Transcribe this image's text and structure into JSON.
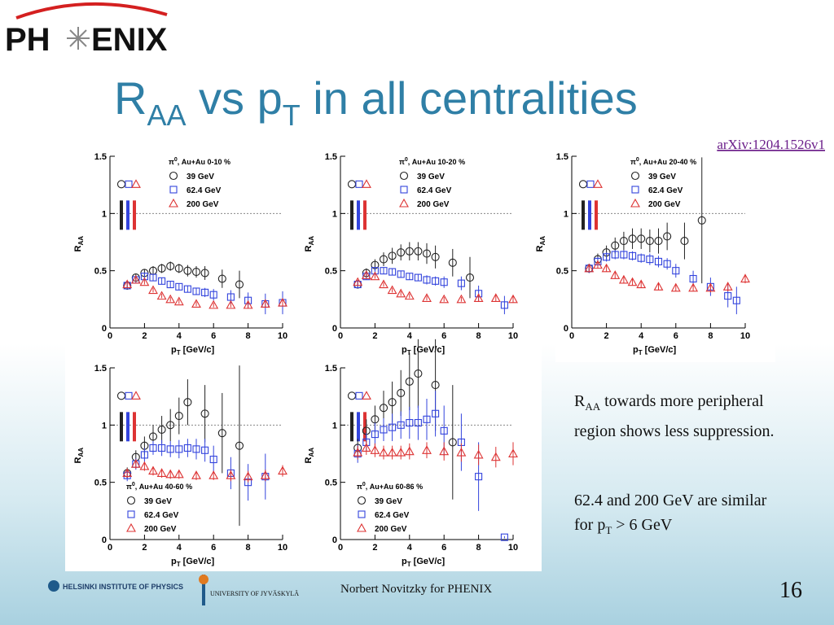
{
  "header": {
    "logo_left": "PH",
    "logo_right": "ENIX",
    "title": {
      "main": "R",
      "sub": "AA",
      "mid": " vs p",
      "sub2": "T",
      "rest": " in all centralities"
    },
    "reference": "arXiv:1204.1526v1"
  },
  "notes": [
    {
      "main": "R",
      "sub": "AA",
      "rest": " towards more peripheral region shows less suppression."
    },
    {
      "main": "62.4 and 200 GeV are similar for p",
      "sub": "T",
      "rest": " > 6 GeV"
    }
  ],
  "footer": {
    "institute": "HELSINKI INSTITUTE OF PHYSICS",
    "university": "UNIVERSITY OF JYVÄSKYLÄ",
    "author": "Norbert Novitzky for PHENIX",
    "page": "16"
  },
  "chart_data": [
    {
      "type": "scatter",
      "title": {
        "main": "π",
        "sup": "0",
        "rest": ", Au+Au 0-10 %"
      },
      "xlabel": {
        "main": "p",
        "sub": "T",
        "rest": " [GeV/c]"
      },
      "ylabel": {
        "main": "R",
        "sub": "AA"
      },
      "xlim": [
        0,
        10
      ],
      "ylim": [
        0,
        1.5
      ],
      "xticks": [
        0,
        2,
        4,
        6,
        8,
        10
      ],
      "yticks": [
        0,
        0.5,
        1,
        1.5
      ],
      "reference_line": 1,
      "legend": "top-left",
      "series": [
        {
          "name": "39 GeV",
          "color": "#222222",
          "marker": "circle",
          "x": [
            1,
            1.5,
            2,
            2.5,
            3,
            3.5,
            4,
            4.5,
            5,
            5.5,
            6.5,
            7.5
          ],
          "values": [
            0.37,
            0.44,
            0.48,
            0.5,
            0.52,
            0.54,
            0.52,
            0.5,
            0.49,
            0.48,
            0.43,
            0.38
          ],
          "errors": [
            0.03,
            0.03,
            0.03,
            0.04,
            0.04,
            0.04,
            0.04,
            0.05,
            0.05,
            0.06,
            0.08,
            0.12
          ]
        },
        {
          "name": "62.4 GeV",
          "color": "#3344dd",
          "marker": "square",
          "x": [
            1,
            1.5,
            2,
            2.5,
            3,
            3.5,
            4,
            4.5,
            5,
            5.5,
            6,
            7,
            8,
            9,
            10
          ],
          "values": [
            0.37,
            0.42,
            0.45,
            0.44,
            0.41,
            0.38,
            0.36,
            0.34,
            0.32,
            0.31,
            0.29,
            0.27,
            0.24,
            0.21,
            0.22
          ],
          "errors": [
            0.03,
            0.03,
            0.03,
            0.03,
            0.03,
            0.03,
            0.03,
            0.03,
            0.03,
            0.04,
            0.05,
            0.06,
            0.07,
            0.09,
            0.1
          ]
        },
        {
          "name": "200 GeV",
          "color": "#dd3333",
          "marker": "triangle",
          "x": [
            1,
            1.5,
            2,
            2.5,
            3,
            3.5,
            4,
            5,
            6,
            7,
            8,
            9,
            10
          ],
          "values": [
            0.38,
            0.42,
            0.4,
            0.33,
            0.28,
            0.25,
            0.23,
            0.21,
            0.2,
            0.2,
            0.2,
            0.21,
            0.22
          ],
          "errors": [
            0.02,
            0.02,
            0.02,
            0.02,
            0.02,
            0.02,
            0.02,
            0.02,
            0.02,
            0.02,
            0.03,
            0.03,
            0.03
          ]
        }
      ]
    },
    {
      "type": "scatter",
      "title": {
        "main": "π",
        "sup": "0",
        "rest": ", Au+Au 10-20 %"
      },
      "xlabel": {
        "main": "p",
        "sub": "T",
        "rest": " [GeV/c]"
      },
      "ylabel": {
        "main": "R",
        "sub": "AA"
      },
      "xlim": [
        0,
        10
      ],
      "ylim": [
        0,
        1.5
      ],
      "xticks": [
        0,
        2,
        4,
        6,
        8,
        10
      ],
      "yticks": [
        0,
        0.5,
        1,
        1.5
      ],
      "reference_line": 1,
      "legend": "top-left",
      "series": [
        {
          "name": "39 GeV",
          "color": "#222222",
          "marker": "circle",
          "x": [
            1,
            1.5,
            2,
            2.5,
            3,
            3.5,
            4,
            4.5,
            5,
            5.5,
            6.5,
            7.5
          ],
          "values": [
            0.38,
            0.48,
            0.55,
            0.6,
            0.63,
            0.66,
            0.67,
            0.67,
            0.65,
            0.62,
            0.57,
            0.44
          ],
          "errors": [
            0.03,
            0.04,
            0.05,
            0.06,
            0.07,
            0.07,
            0.08,
            0.08,
            0.09,
            0.1,
            0.12,
            0.18
          ]
        },
        {
          "name": "62.4 GeV",
          "color": "#3344dd",
          "marker": "square",
          "x": [
            1,
            1.5,
            2,
            2.5,
            3,
            3.5,
            4,
            4.5,
            5,
            5.5,
            6,
            7,
            8,
            9.5
          ],
          "values": [
            0.38,
            0.45,
            0.5,
            0.5,
            0.49,
            0.47,
            0.45,
            0.44,
            0.42,
            0.41,
            0.4,
            0.39,
            0.3,
            0.2
          ],
          "errors": [
            0.03,
            0.03,
            0.03,
            0.03,
            0.03,
            0.03,
            0.03,
            0.03,
            0.04,
            0.04,
            0.05,
            0.06,
            0.07,
            0.08
          ]
        },
        {
          "name": "200 GeV",
          "color": "#dd3333",
          "marker": "triangle",
          "x": [
            1,
            1.5,
            2,
            2.5,
            3,
            3.5,
            4,
            5,
            6,
            7,
            8,
            9,
            10
          ],
          "values": [
            0.4,
            0.46,
            0.45,
            0.38,
            0.33,
            0.3,
            0.28,
            0.26,
            0.25,
            0.25,
            0.26,
            0.26,
            0.25
          ],
          "errors": [
            0.02,
            0.02,
            0.02,
            0.02,
            0.02,
            0.02,
            0.02,
            0.02,
            0.02,
            0.02,
            0.03,
            0.03,
            0.03
          ]
        }
      ]
    },
    {
      "type": "scatter",
      "title": {
        "main": "π",
        "sup": "0",
        "rest": ", Au+Au 20-40 %"
      },
      "xlabel": {
        "main": "p",
        "sub": "T",
        "rest": " [GeV/c]"
      },
      "ylabel": {
        "main": "R",
        "sub": "AA"
      },
      "xlim": [
        0,
        10
      ],
      "ylim": [
        0,
        1.5
      ],
      "xticks": [
        0,
        2,
        4,
        6,
        8,
        10
      ],
      "yticks": [
        0,
        0.5,
        1,
        1.5
      ],
      "reference_line": 1,
      "legend": "top-left",
      "series": [
        {
          "name": "39 GeV",
          "color": "#222222",
          "marker": "circle",
          "x": [
            1,
            1.5,
            2,
            2.5,
            3,
            3.5,
            4,
            4.5,
            5,
            5.5,
            6.5,
            7.5
          ],
          "values": [
            0.52,
            0.6,
            0.66,
            0.72,
            0.76,
            0.78,
            0.78,
            0.76,
            0.76,
            0.8,
            0.76,
            0.94
          ],
          "errors": [
            0.04,
            0.05,
            0.06,
            0.07,
            0.08,
            0.09,
            0.09,
            0.1,
            0.11,
            0.12,
            0.16,
            0.55
          ]
        },
        {
          "name": "62.4 GeV",
          "color": "#3344dd",
          "marker": "square",
          "x": [
            1,
            1.5,
            2,
            2.5,
            3,
            3.5,
            4,
            4.5,
            5,
            5.5,
            6,
            7,
            8,
            9,
            9.5
          ],
          "values": [
            0.52,
            0.58,
            0.62,
            0.64,
            0.64,
            0.63,
            0.61,
            0.6,
            0.58,
            0.56,
            0.5,
            0.43,
            0.36,
            0.28,
            0.24
          ],
          "errors": [
            0.04,
            0.04,
            0.04,
            0.04,
            0.04,
            0.04,
            0.04,
            0.05,
            0.05,
            0.05,
            0.06,
            0.07,
            0.08,
            0.1,
            0.12
          ]
        },
        {
          "name": "200 GeV",
          "color": "#dd3333",
          "marker": "triangle",
          "x": [
            1,
            1.5,
            2,
            2.5,
            3,
            3.5,
            4,
            5,
            6,
            7,
            8,
            9,
            10
          ],
          "values": [
            0.52,
            0.55,
            0.52,
            0.46,
            0.42,
            0.4,
            0.38,
            0.36,
            0.35,
            0.35,
            0.35,
            0.36,
            0.43
          ],
          "errors": [
            0.03,
            0.03,
            0.03,
            0.03,
            0.03,
            0.03,
            0.03,
            0.03,
            0.03,
            0.03,
            0.04,
            0.04,
            0.04
          ]
        }
      ]
    },
    {
      "type": "scatter",
      "title": {
        "main": "π",
        "sup": "0",
        "rest": ", Au+Au 40-60 %"
      },
      "xlabel": {
        "main": "p",
        "sub": "T",
        "rest": " [GeV/c]"
      },
      "ylabel": {
        "main": "R",
        "sub": "AA"
      },
      "xlim": [
        0,
        10
      ],
      "ylim": [
        0,
        1.5
      ],
      "xticks": [
        0,
        2,
        4,
        6,
        8,
        10
      ],
      "yticks": [
        0,
        0.5,
        1,
        1.5
      ],
      "reference_line": 1,
      "legend": "bottom-left",
      "series": [
        {
          "name": "39 GeV",
          "color": "#222222",
          "marker": "circle",
          "x": [
            1,
            1.5,
            2,
            2.5,
            3,
            3.5,
            4,
            4.5,
            5.5,
            6.5,
            7.5
          ],
          "values": [
            0.58,
            0.72,
            0.82,
            0.9,
            0.96,
            1.0,
            1.08,
            1.2,
            1.1,
            0.93,
            0.82
          ],
          "errors": [
            0.05,
            0.06,
            0.08,
            0.1,
            0.12,
            0.14,
            0.16,
            0.2,
            0.25,
            0.35,
            0.7
          ]
        },
        {
          "name": "62.4 GeV",
          "color": "#3344dd",
          "marker": "square",
          "x": [
            1,
            1.5,
            2,
            2.5,
            3,
            3.5,
            4,
            4.5,
            5,
            5.5,
            6,
            7,
            8,
            9
          ],
          "values": [
            0.56,
            0.66,
            0.74,
            0.8,
            0.8,
            0.79,
            0.79,
            0.8,
            0.79,
            0.78,
            0.7,
            0.58,
            0.5,
            0.55
          ],
          "errors": [
            0.05,
            0.05,
            0.06,
            0.06,
            0.07,
            0.07,
            0.08,
            0.08,
            0.09,
            0.1,
            0.12,
            0.14,
            0.16,
            0.2
          ]
        },
        {
          "name": "200 GeV",
          "color": "#dd3333",
          "marker": "triangle",
          "x": [
            1,
            1.5,
            2,
            2.5,
            3,
            3.5,
            4,
            5,
            6,
            7,
            8,
            9,
            10
          ],
          "values": [
            0.58,
            0.66,
            0.64,
            0.6,
            0.58,
            0.57,
            0.57,
            0.56,
            0.56,
            0.56,
            0.55,
            0.56,
            0.6
          ],
          "errors": [
            0.04,
            0.04,
            0.04,
            0.04,
            0.04,
            0.04,
            0.04,
            0.04,
            0.04,
            0.05,
            0.05,
            0.05,
            0.05
          ]
        }
      ]
    },
    {
      "type": "scatter",
      "title": {
        "main": "π",
        "sup": "0",
        "rest": ", Au+Au 60-86 %"
      },
      "xlabel": {
        "main": "p",
        "sub": "T",
        "rest": " [GeV/c]"
      },
      "ylabel": {
        "main": "R",
        "sub": "AA"
      },
      "xlim": [
        0,
        10
      ],
      "ylim": [
        0,
        1.5
      ],
      "xticks": [
        0,
        2,
        4,
        6,
        8,
        10
      ],
      "yticks": [
        0,
        0.5,
        1,
        1.5
      ],
      "reference_line": 1,
      "legend": "bottom-left",
      "series": [
        {
          "name": "39 GeV",
          "color": "#222222",
          "marker": "circle",
          "x": [
            1,
            1.5,
            2,
            2.5,
            3,
            3.5,
            4,
            4.5,
            5.5,
            6.5
          ],
          "values": [
            0.8,
            0.95,
            1.05,
            1.15,
            1.2,
            1.28,
            1.38,
            1.45,
            1.35,
            0.85
          ],
          "errors": [
            0.08,
            0.1,
            0.12,
            0.15,
            0.18,
            0.2,
            0.25,
            0.3,
            0.4,
            0.5
          ]
        },
        {
          "name": "62.4 GeV",
          "color": "#3344dd",
          "marker": "square",
          "x": [
            1,
            1.5,
            2,
            2.5,
            3,
            3.5,
            4,
            4.5,
            5,
            5.5,
            6,
            7,
            8,
            9.5
          ],
          "values": [
            0.75,
            0.85,
            0.92,
            0.96,
            0.98,
            1.0,
            1.02,
            1.02,
            1.05,
            1.1,
            0.95,
            0.85,
            0.55,
            0.02
          ],
          "errors": [
            0.08,
            0.08,
            0.1,
            0.1,
            0.12,
            0.12,
            0.14,
            0.15,
            0.18,
            0.2,
            0.22,
            0.25,
            0.3,
            0.01
          ]
        },
        {
          "name": "200 GeV",
          "color": "#dd3333",
          "marker": "triangle",
          "x": [
            1,
            1.5,
            2,
            2.5,
            3,
            3.5,
            4,
            5,
            6,
            7,
            8,
            9,
            10
          ],
          "values": [
            0.76,
            0.8,
            0.78,
            0.76,
            0.76,
            0.76,
            0.77,
            0.78,
            0.77,
            0.76,
            0.74,
            0.72,
            0.75
          ],
          "errors": [
            0.06,
            0.06,
            0.06,
            0.06,
            0.06,
            0.06,
            0.07,
            0.07,
            0.08,
            0.08,
            0.09,
            0.09,
            0.1
          ]
        }
      ]
    }
  ]
}
